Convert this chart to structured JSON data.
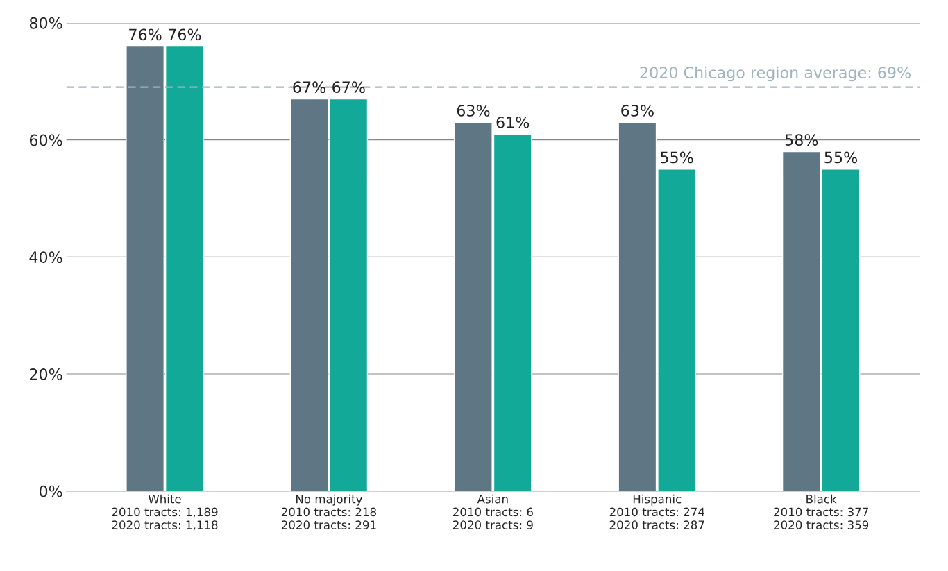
{
  "chart_data": {
    "type": "bar",
    "categories": [
      "White\n2010 tracts: 1,189\n2020 tracts: 1,118",
      "No majority\n2010 tracts: 218\n2020 tracts: 291",
      "Asian\n2010 tracts: 6\n2020 tracts: 9",
      "Hispanic\n2010 tracts: 274\n2020 tracts: 287",
      "Black\n2010 tracts: 377\n2020 tracts: 359"
    ],
    "series": [
      {
        "color": "#5f7784",
        "values": [
          76,
          67,
          63,
          63,
          58
        ],
        "value_labels": [
          "76%",
          "67%",
          "63%",
          "63%",
          "58%"
        ]
      },
      {
        "color": "#13a999",
        "values": [
          76,
          67,
          61,
          55,
          55
        ],
        "value_labels": [
          "76%",
          "67%",
          "61%",
          "55%",
          "55%"
        ]
      }
    ],
    "ylim": [
      0,
      80
    ],
    "yticks": [
      {
        "value": 0,
        "label": "0%"
      },
      {
        "value": 20,
        "label": "20%"
      },
      {
        "value": 40,
        "label": "40%"
      },
      {
        "value": 60,
        "label": "60%"
      },
      {
        "value": 80,
        "label": "80%"
      }
    ],
    "grid": "y",
    "ref_lines": [
      {
        "axis": "y",
        "value": 69,
        "label": "2020 Chicago region average: 69%",
        "color": "#9fb4bd",
        "line_style": "dashed"
      }
    ]
  }
}
